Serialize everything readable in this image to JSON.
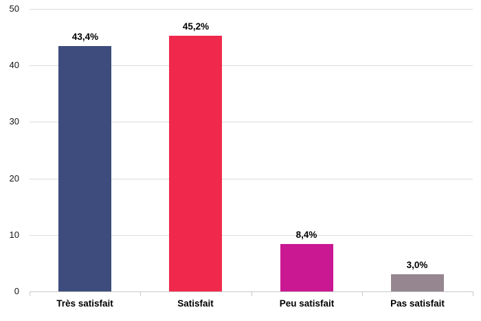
{
  "chart_data": {
    "type": "bar",
    "title": "",
    "xlabel": "",
    "ylabel": "",
    "categories": [
      "Très satisfait",
      "Satisfait",
      "Peu satisfait",
      "Pas satisfait"
    ],
    "values": [
      43.4,
      45.2,
      8.4,
      3.0
    ],
    "value_labels": [
      "43,4%",
      "45,2%",
      "8,4%",
      "3,0%"
    ],
    "bar_colors": [
      "#3D4C7D",
      "#F0294C",
      "#CA1792",
      "#95868F"
    ],
    "ylim": [
      0,
      50
    ],
    "yticks": [
      0,
      10,
      20,
      30,
      40,
      50
    ],
    "ytick_labels": [
      "0",
      "10",
      "20",
      "30",
      "40",
      "50"
    ],
    "grid": "horizontal",
    "legend": "none",
    "colors": {
      "background": "#FFFFFF",
      "gridline": "#DBDBDB",
      "axis_line": "#C9C9C9",
      "boundary_tick": "#C9C9C9",
      "text": "#000000"
    }
  }
}
